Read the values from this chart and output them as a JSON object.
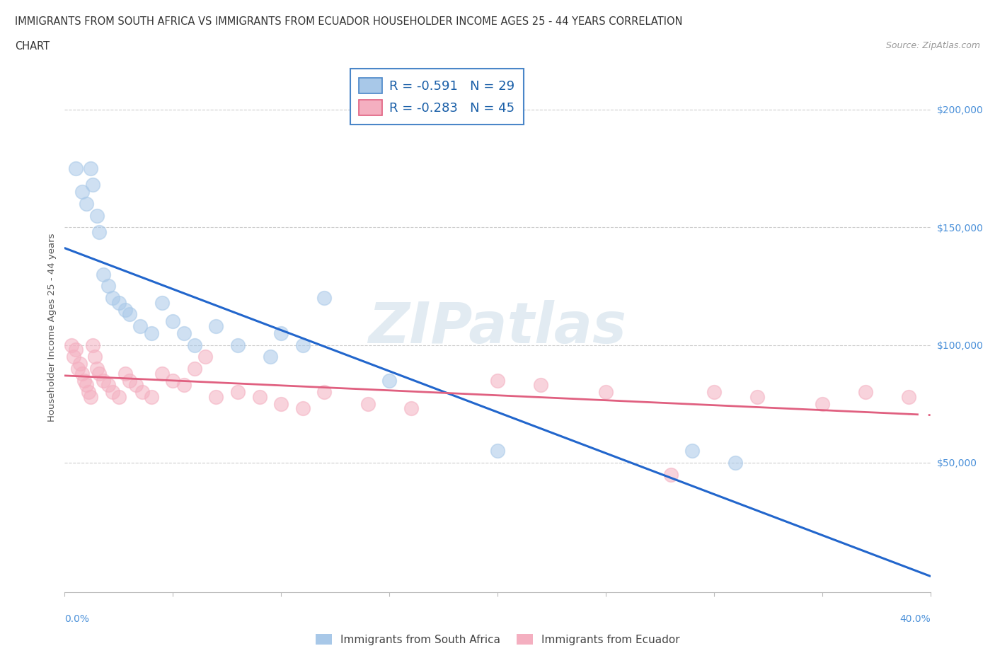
{
  "title_line1": "IMMIGRANTS FROM SOUTH AFRICA VS IMMIGRANTS FROM ECUADOR HOUSEHOLDER INCOME AGES 25 - 44 YEARS CORRELATION",
  "title_line2": "CHART",
  "source": "Source: ZipAtlas.com",
  "ylabel": "Householder Income Ages 25 - 44 years",
  "xlim": [
    0.0,
    0.4
  ],
  "ylim": [
    -5000,
    220000
  ],
  "yticks": [
    50000,
    100000,
    150000,
    200000
  ],
  "gridline_y": [
    200000,
    150000,
    100000,
    50000
  ],
  "south_africa_color": "#a8c8e8",
  "ecuador_color": "#f4afc0",
  "south_africa_R": -0.591,
  "south_africa_N": 29,
  "ecuador_R": -0.283,
  "ecuador_N": 45,
  "sa_x": [
    0.005,
    0.008,
    0.01,
    0.012,
    0.013,
    0.015,
    0.016,
    0.018,
    0.02,
    0.022,
    0.025,
    0.028,
    0.03,
    0.035,
    0.04,
    0.045,
    0.05,
    0.055,
    0.06,
    0.07,
    0.08,
    0.095,
    0.1,
    0.11,
    0.12,
    0.15,
    0.2,
    0.29,
    0.31
  ],
  "sa_y": [
    175000,
    165000,
    160000,
    175000,
    168000,
    155000,
    148000,
    130000,
    125000,
    120000,
    118000,
    115000,
    113000,
    108000,
    105000,
    118000,
    110000,
    105000,
    100000,
    108000,
    100000,
    95000,
    105000,
    100000,
    120000,
    85000,
    55000,
    55000,
    50000
  ],
  "ec_x": [
    0.003,
    0.004,
    0.005,
    0.006,
    0.007,
    0.008,
    0.009,
    0.01,
    0.011,
    0.012,
    0.013,
    0.014,
    0.015,
    0.016,
    0.018,
    0.02,
    0.022,
    0.025,
    0.028,
    0.03,
    0.033,
    0.036,
    0.04,
    0.045,
    0.05,
    0.055,
    0.06,
    0.065,
    0.07,
    0.08,
    0.09,
    0.1,
    0.11,
    0.12,
    0.14,
    0.16,
    0.2,
    0.22,
    0.25,
    0.28,
    0.3,
    0.32,
    0.35,
    0.37,
    0.39
  ],
  "ec_y": [
    100000,
    95000,
    98000,
    90000,
    92000,
    88000,
    85000,
    83000,
    80000,
    78000,
    100000,
    95000,
    90000,
    88000,
    85000,
    83000,
    80000,
    78000,
    88000,
    85000,
    83000,
    80000,
    78000,
    88000,
    85000,
    83000,
    90000,
    95000,
    78000,
    80000,
    78000,
    75000,
    73000,
    80000,
    75000,
    73000,
    85000,
    83000,
    80000,
    45000,
    80000,
    78000,
    75000,
    80000,
    78000
  ],
  "background_color": "#ffffff",
  "grid_color": "#cccccc",
  "line_sa_color": "#2266cc",
  "line_ec_color": "#e06080",
  "watermark_color": "#ccddeebb",
  "legend_edge_color": "#4a86c8",
  "tick_label_color": "#4a90d9",
  "title_color": "#333333",
  "source_color": "#999999"
}
